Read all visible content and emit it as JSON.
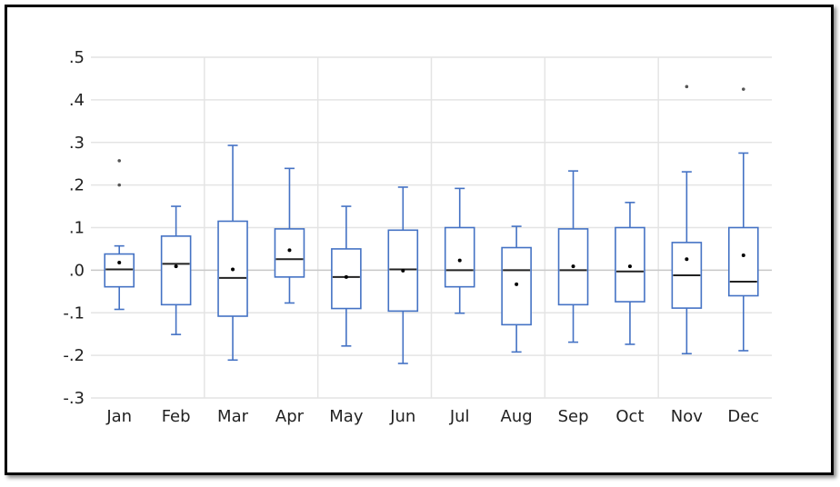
{
  "chart_data": {
    "type": "boxplot",
    "title": "",
    "xlabel": "",
    "ylabel": "",
    "ylim": [
      -0.3,
      0.5
    ],
    "yticks": [
      0.5,
      0.4,
      0.3,
      0.2,
      0.1,
      0.0,
      -0.1,
      -0.2,
      -0.3
    ],
    "ytick_labels": [
      ".5",
      ".4",
      ".3",
      ".2",
      ".1",
      ".0",
      "-.1",
      "-.2",
      "-.3"
    ],
    "grid": true,
    "colors": {
      "box": "#4472C4",
      "median": "#222222",
      "mean": "#000000",
      "grid": "#e4e4e4",
      "zero_line": "#c8c8c8"
    },
    "categories": [
      "Jan",
      "Feb",
      "Mar",
      "Apr",
      "May",
      "Jun",
      "Jul",
      "Aug",
      "Sep",
      "Oct",
      "Nov",
      "Dec"
    ],
    "boxes": [
      {
        "min": -0.092,
        "q1": -0.039,
        "median": 0.002,
        "q3": 0.038,
        "max": 0.057,
        "mean": 0.018,
        "outliers": [
          0.257,
          0.2
        ]
      },
      {
        "min": -0.151,
        "q1": -0.081,
        "median": 0.015,
        "q3": 0.08,
        "max": 0.15,
        "mean": 0.009,
        "outliers": []
      },
      {
        "min": -0.211,
        "q1": -0.108,
        "median": -0.018,
        "q3": 0.115,
        "max": 0.293,
        "mean": 0.002,
        "outliers": []
      },
      {
        "min": -0.077,
        "q1": -0.016,
        "median": 0.026,
        "q3": 0.097,
        "max": 0.239,
        "mean": 0.047,
        "outliers": []
      },
      {
        "min": -0.178,
        "q1": -0.09,
        "median": -0.016,
        "q3": 0.05,
        "max": 0.15,
        "mean": -0.016,
        "outliers": []
      },
      {
        "min": -0.219,
        "q1": -0.096,
        "median": 0.002,
        "q3": 0.094,
        "max": 0.195,
        "mean": -0.001,
        "outliers": []
      },
      {
        "min": -0.101,
        "q1": -0.039,
        "median": 0.0,
        "q3": 0.1,
        "max": 0.192,
        "mean": 0.023,
        "outliers": []
      },
      {
        "min": -0.192,
        "q1": -0.128,
        "median": 0.0,
        "q3": 0.053,
        "max": 0.103,
        "mean": -0.033,
        "outliers": []
      },
      {
        "min": -0.169,
        "q1": -0.081,
        "median": 0.0,
        "q3": 0.097,
        "max": 0.233,
        "mean": 0.009,
        "outliers": []
      },
      {
        "min": -0.174,
        "q1": -0.074,
        "median": -0.003,
        "q3": 0.1,
        "max": 0.159,
        "mean": 0.009,
        "outliers": []
      },
      {
        "min": -0.196,
        "q1": -0.089,
        "median": -0.012,
        "q3": 0.065,
        "max": 0.231,
        "mean": 0.026,
        "outliers": [
          0.431
        ]
      },
      {
        "min": -0.189,
        "q1": -0.06,
        "median": -0.027,
        "q3": 0.1,
        "max": 0.275,
        "mean": 0.035,
        "outliers": [
          0.425
        ]
      }
    ]
  }
}
